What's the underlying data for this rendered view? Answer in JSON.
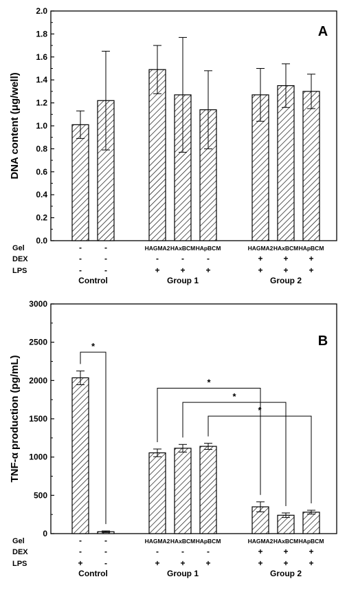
{
  "chart_data": [
    {
      "type": "bar",
      "panel": "A",
      "ylabel": "DNA content (μg/well)",
      "ylim": [
        0,
        2.0
      ],
      "yticks": [
        "0.0",
        "0.2",
        "0.4",
        "0.6",
        "0.8",
        "1.0",
        "1.2",
        "1.4",
        "1.6",
        "1.8",
        "2.0"
      ],
      "bars": [
        {
          "value": 1.01,
          "error": 0.12
        },
        {
          "value": 1.22,
          "error": 0.43
        },
        {
          "value": 1.49,
          "error": 0.21
        },
        {
          "value": 1.27,
          "error": 0.5
        },
        {
          "value": 1.14,
          "error": 0.34
        },
        {
          "value": 1.27,
          "error": 0.23
        },
        {
          "value": 1.35,
          "error": 0.19
        },
        {
          "value": 1.3,
          "error": 0.15
        }
      ],
      "significance": []
    },
    {
      "type": "bar",
      "panel": "B",
      "ylabel": "TNF-α production (pg/mL)",
      "ylim": [
        0,
        3000
      ],
      "yticks": [
        "0",
        "500",
        "1000",
        "1500",
        "2000",
        "2500",
        "3000"
      ],
      "bars": [
        {
          "value": 2035,
          "error": 90
        },
        {
          "value": 25,
          "error": 10
        },
        {
          "value": 1055,
          "error": 50
        },
        {
          "value": 1115,
          "error": 50
        },
        {
          "value": 1140,
          "error": 40
        },
        {
          "value": 350,
          "error": 65
        },
        {
          "value": 240,
          "error": 30
        },
        {
          "value": 280,
          "error": 25
        }
      ],
      "significance": [
        {
          "from": 0,
          "to": 1,
          "level": 2370,
          "label": "*"
        },
        {
          "from": 2,
          "to": 5,
          "level": 1900,
          "label": "*"
        },
        {
          "from": 3,
          "to": 6,
          "level": 1715,
          "label": "*"
        },
        {
          "from": 4,
          "to": 7,
          "level": 1535,
          "label": "*"
        }
      ]
    }
  ],
  "conditions": {
    "row_labels": [
      "Gel",
      "DEX",
      "LPS"
    ],
    "gel": [
      "-",
      "-",
      "HAGMA2",
      "HAxBCM",
      "HApBCM",
      "HAGMA2",
      "HAxBCM",
      "HApBCM"
    ],
    "dex": [
      "-",
      "-",
      "-",
      "-",
      "-",
      "+",
      "+",
      "+"
    ],
    "lps_panel_a": [
      "-",
      "-",
      "+",
      "+",
      "+",
      "+",
      "+",
      "+"
    ],
    "lps_panel_b": [
      "+",
      "-",
      "+",
      "+",
      "+",
      "+",
      "+",
      "+"
    ]
  },
  "groups": [
    {
      "label": "Control",
      "bars": [
        0,
        1
      ]
    },
    {
      "label": "Group 1",
      "bars": [
        2,
        4
      ]
    },
    {
      "label": "Group 2",
      "bars": [
        5,
        7
      ]
    }
  ]
}
